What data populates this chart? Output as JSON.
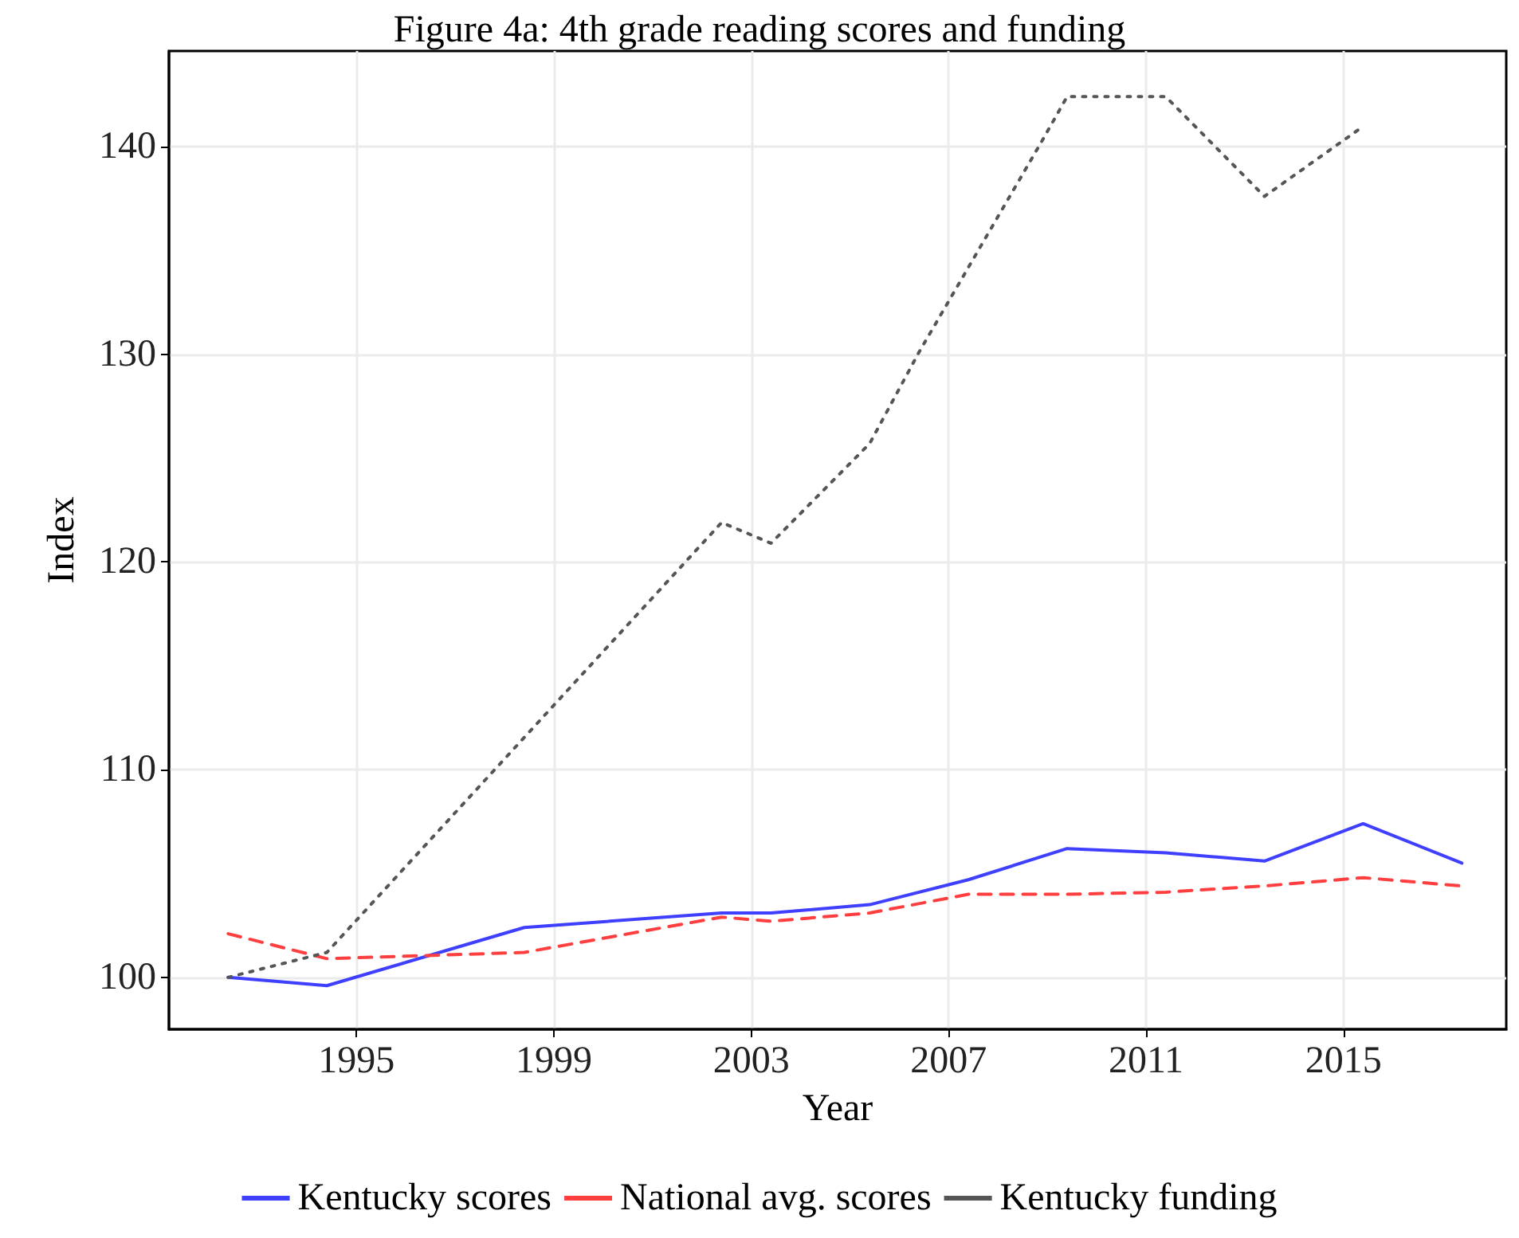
{
  "chart_data": {
    "type": "line",
    "title": "Figure 4a: 4th grade reading scores and funding",
    "xlabel": "Year",
    "ylabel": "Index",
    "xlim": [
      1991.2,
      2018.3
    ],
    "xticks": [
      1995,
      1999,
      2003,
      2007,
      2011,
      2015
    ],
    "ylim": [
      97.5,
      144.6
    ],
    "yticks": [
      100,
      110,
      120,
      130,
      140
    ],
    "grid": true,
    "legend": "bottom",
    "marker": "none",
    "series": [
      {
        "name": "Kentucky scores",
        "color": "#3f3fff",
        "line_style": "solid",
        "x": [
          1992.4,
          1994.4,
          1998.4,
          2002.4,
          2003.4,
          2005.4,
          2007.4,
          2009.4,
          2011.4,
          2013.4,
          2015.4,
          2017.4
        ],
        "values": [
          100,
          99.6,
          102.4,
          103.1,
          103.1,
          103.5,
          104.7,
          106.2,
          106,
          105.6,
          107.4,
          105.5
        ]
      },
      {
        "name": "National avg. scores",
        "color": "#ff3f3f",
        "line_style": "dashed",
        "x": [
          1992.4,
          1994.4,
          1998.4,
          2002.4,
          2003.4,
          2005.4,
          2007.4,
          2009.4,
          2011.4,
          2013.4,
          2015.4,
          2017.4
        ],
        "values": [
          102.1,
          100.9,
          101.2,
          102.9,
          102.7,
          103.1,
          104,
          104,
          104.1,
          104.4,
          104.8,
          104.4
        ]
      },
      {
        "name": "Kentucky funding",
        "color": "#555555",
        "line_style": "dotted",
        "x": [
          1992.4,
          1994.4,
          2002.4,
          2003.4,
          2005.4,
          2006.4,
          2008.9,
          2009.4,
          2011.4,
          2013.4,
          2015.3
        ],
        "values": [
          100,
          101.2,
          121.9,
          120.9,
          125.7,
          130.1,
          140.3,
          142.4,
          142.4,
          137.6,
          140.8
        ]
      }
    ]
  }
}
